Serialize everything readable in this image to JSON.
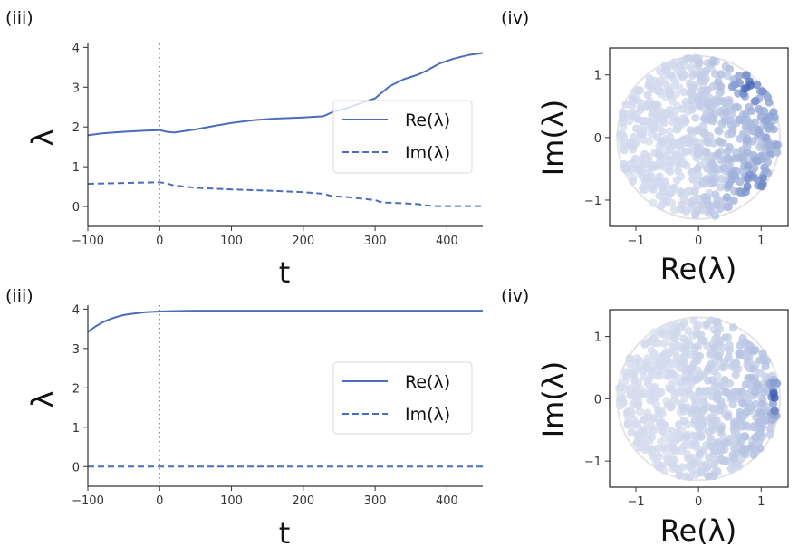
{
  "chart_data": [
    {
      "id": "top-line",
      "type": "line",
      "panel_label": "(iii)",
      "xlabel": "t",
      "ylabel": "λ",
      "xlim": [
        -100,
        450
      ],
      "ylim": [
        -0.5,
        4.1
      ],
      "xticks": [
        -100,
        0,
        100,
        200,
        300,
        400
      ],
      "xtick_labels": [
        "−100",
        "0",
        "100",
        "200",
        "300",
        "400"
      ],
      "yticks": [
        0,
        1,
        2,
        3,
        4
      ],
      "ytick_labels": [
        "0",
        "1",
        "2",
        "3",
        "4"
      ],
      "vline": 0,
      "grid": false,
      "legend": {
        "placement": "center-right",
        "entries": [
          "Re(λ)",
          "Im(λ)"
        ]
      },
      "color": "#4c6cbd",
      "series": [
        {
          "name": "Re(λ)",
          "style": "solid",
          "x": [
            -100,
            -80,
            -50,
            -20,
            0,
            10,
            20,
            50,
            80,
            100,
            130,
            160,
            200,
            228,
            240,
            260,
            280,
            300,
            305,
            320,
            340,
            360,
            372,
            390,
            410,
            430,
            450
          ],
          "y": [
            1.79,
            1.84,
            1.88,
            1.91,
            1.92,
            1.88,
            1.86,
            1.94,
            2.04,
            2.1,
            2.17,
            2.21,
            2.24,
            2.27,
            2.37,
            2.47,
            2.6,
            2.72,
            2.8,
            3.02,
            3.2,
            3.32,
            3.42,
            3.6,
            3.72,
            3.81,
            3.86
          ]
        },
        {
          "name": "Im(λ)",
          "style": "dashed",
          "x": [
            -100,
            -50,
            0,
            10,
            20,
            50,
            100,
            150,
            200,
            228,
            240,
            260,
            280,
            300,
            310,
            340,
            360,
            370,
            380,
            400,
            430,
            450
          ],
          "y": [
            0.57,
            0.59,
            0.61,
            0.58,
            0.53,
            0.47,
            0.43,
            0.4,
            0.36,
            0.32,
            0.26,
            0.24,
            0.2,
            0.16,
            0.1,
            0.08,
            0.06,
            0.03,
            0.01,
            0.01,
            0.01,
            0.01
          ]
        }
      ]
    },
    {
      "id": "top-scatter",
      "type": "scatter",
      "panel_label": "(iv)",
      "xlabel": "Re(λ)",
      "ylabel": "Im(λ)",
      "xlim": [
        -1.42,
        1.43
      ],
      "ylim": [
        -1.42,
        1.43
      ],
      "xticks": [
        -1,
        0,
        1
      ],
      "xtick_labels": [
        "−1",
        "0",
        "1"
      ],
      "yticks": [
        -1,
        0,
        1
      ],
      "ytick_labels": [
        "−1",
        "0",
        "1"
      ],
      "reference_circle_radius": 1.3,
      "point_count": 700,
      "point_cloud_radius": 1.28,
      "intensity_focus": "right edge, near Im = ±0.8",
      "color_light": "#e6eaf4",
      "color_dark": "#3d5fb5"
    },
    {
      "id": "bottom-line",
      "type": "line",
      "panel_label": "(iii)",
      "xlabel": "t",
      "ylabel": "λ",
      "xlim": [
        -100,
        450
      ],
      "ylim": [
        -0.5,
        4.1
      ],
      "xticks": [
        -100,
        0,
        100,
        200,
        300,
        400
      ],
      "xtick_labels": [
        "−100",
        "0",
        "100",
        "200",
        "300",
        "400"
      ],
      "yticks": [
        0,
        1,
        2,
        3,
        4
      ],
      "ytick_labels": [
        "0",
        "1",
        "2",
        "3",
        "4"
      ],
      "vline": 0,
      "grid": false,
      "legend": {
        "placement": "center-right",
        "entries": [
          "Re(λ)",
          "Im(λ)"
        ]
      },
      "color": "#4c6cbd",
      "series": [
        {
          "name": "Re(λ)",
          "style": "solid",
          "x": [
            -100,
            -90,
            -80,
            -70,
            -60,
            -50,
            -40,
            -30,
            -20,
            -10,
            0,
            20,
            50,
            100,
            200,
            300,
            450
          ],
          "y": [
            3.42,
            3.55,
            3.66,
            3.74,
            3.8,
            3.85,
            3.88,
            3.9,
            3.92,
            3.93,
            3.94,
            3.95,
            3.96,
            3.96,
            3.96,
            3.96,
            3.96
          ]
        },
        {
          "name": "Im(λ)",
          "style": "dashed",
          "x": [
            -100,
            450
          ],
          "y": [
            0,
            0
          ]
        }
      ]
    },
    {
      "id": "bottom-scatter",
      "type": "scatter",
      "panel_label": "(iv)",
      "xlabel": "Re(λ)",
      "ylabel": "Im(λ)",
      "xlim": [
        -1.42,
        1.43
      ],
      "ylim": [
        -1.42,
        1.43
      ],
      "xticks": [
        -1,
        0,
        1
      ],
      "xtick_labels": [
        "−1",
        "0",
        "1"
      ],
      "yticks": [
        -1,
        0,
        1
      ],
      "ytick_labels": [
        "−1",
        "0",
        "1"
      ],
      "reference_circle_radius": 1.3,
      "point_count": 700,
      "point_cloud_radius": 1.28,
      "intensity_focus": "right edge, near Im = 0",
      "color_light": "#e6eaf4",
      "color_dark": "#3d5fb5"
    }
  ]
}
